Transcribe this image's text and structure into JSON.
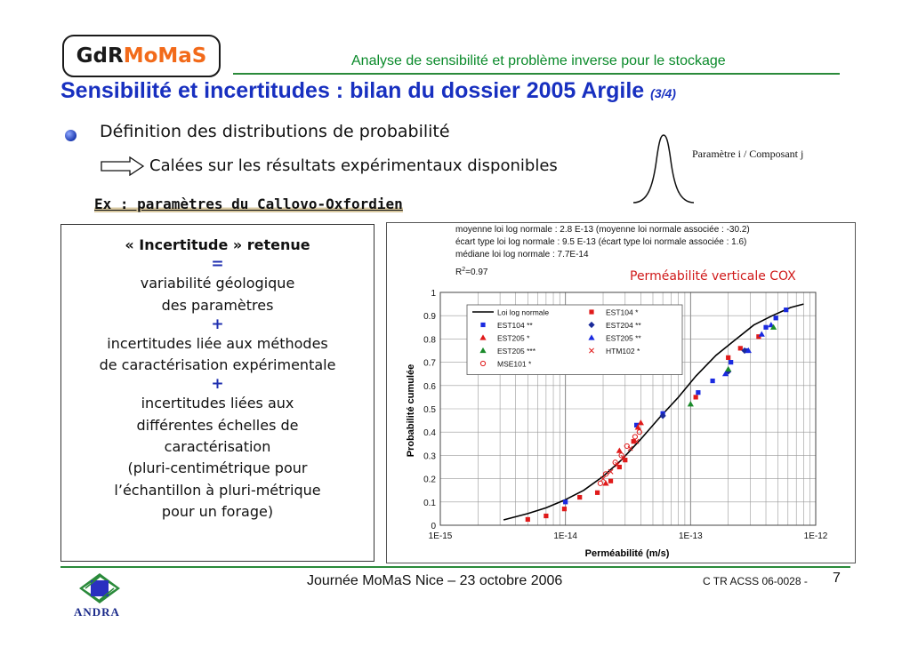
{
  "logo": {
    "part1": "GdR",
    "part2": "MoMaS"
  },
  "header": {
    "title": "Analyse de sensibilité et problème inverse pour le stockage"
  },
  "main_title": {
    "text": "Sensibilité et incertitudes : bilan du dossier 2005 Argile ",
    "suffix": "(3/4)"
  },
  "bullet": {
    "text": "Définition des distributions de probabilité"
  },
  "sub_point": {
    "text": "Calées sur les résultats expérimentaux disponibles"
  },
  "bell_label": "Paramètre i / Composant j",
  "example": "Ex : paramètres du Callovo-Oxfordien",
  "uncertainty_box": {
    "title": "« Incertitude » retenue",
    "eq": "=",
    "line1": "variabilité géologique",
    "line2": "des paramètres",
    "plus1": "+",
    "line3": "incertitudes liée aux méthodes",
    "line4": "de caractérisation expérimentale",
    "plus2": "+",
    "line5": "incertitudes liées aux",
    "line6": "différentes échelles de",
    "line7": "caractérisation",
    "line8": "(pluri-centimétrique pour",
    "line9": "l’échantillon à pluri-métrique",
    "line10": "pour un forage)"
  },
  "chart_title": "Perméabilité verticale COX",
  "chart_data": {
    "type": "scatter",
    "title": "Perméabilité verticale COX",
    "xlabel": "Perméabilité (m/s)",
    "ylabel": "Probabilité cumulée",
    "x_scale": "log",
    "xlim": [
      1e-15,
      1e-12
    ],
    "ylim": [
      0,
      1
    ],
    "x_ticks": [
      "1E-15",
      "1E-14",
      "1E-13",
      "1E-12"
    ],
    "y_ticks": [
      "0",
      "0.1",
      "0.2",
      "0.3",
      "0.4",
      "0.5",
      "0.6",
      "0.7",
      "0.8",
      "0.9",
      "1"
    ],
    "grid": true,
    "legend_position": "top-left",
    "annotations": {
      "line1": "moyenne loi log normale : 2.8 E-13 (moyenne loi normale associée : -30.2)",
      "line2": "écart type loi log normale : 9.5 E-13 (écart type loi normale associée : 1.6)",
      "line3": "médiane loi log normale : 7.7E-14",
      "r2_prefix": "R",
      "r2_sup": "2",
      "r2_value": "=0.97"
    },
    "curve": {
      "name": "Loi log normale",
      "color": "#000000",
      "x": [
        3.2e-15,
        5e-15,
        7e-15,
        1e-14,
        1.4e-14,
        2e-14,
        2.8e-14,
        4e-14,
        5.6e-14,
        8e-14,
        1.1e-13,
        1.6e-13,
        2.2e-13,
        3.2e-13,
        4.5e-13,
        6.3e-13,
        8e-13
      ],
      "y": [
        0.023,
        0.05,
        0.075,
        0.11,
        0.15,
        0.21,
        0.28,
        0.37,
        0.46,
        0.55,
        0.64,
        0.73,
        0.79,
        0.86,
        0.9,
        0.935,
        0.95
      ]
    },
    "series": [
      {
        "name": "EST104 *",
        "color": "#e01a1a",
        "marker": "square",
        "x": [
          5e-15,
          7e-15,
          9.8e-15,
          1.3e-14,
          1.8e-14,
          2.3e-14,
          2.7e-14,
          3e-14,
          3.5e-14,
          1.1e-13,
          2e-13,
          2.5e-13,
          3.5e-13
        ],
        "y": [
          0.025,
          0.04,
          0.07,
          0.12,
          0.14,
          0.19,
          0.25,
          0.28,
          0.36,
          0.55,
          0.72,
          0.76,
          0.81
        ]
      },
      {
        "name": "EST104 **",
        "color": "#1a2ae0",
        "marker": "square",
        "x": [
          1e-14,
          3.7e-14,
          6e-14,
          1.15e-13,
          1.5e-13,
          2.1e-13,
          2.8e-13,
          4e-13,
          4.8e-13,
          5.8e-13
        ],
        "y": [
          0.1,
          0.43,
          0.48,
          0.57,
          0.62,
          0.7,
          0.75,
          0.85,
          0.89,
          0.925
        ]
      },
      {
        "name": "EST204 **",
        "color": "#1a2a9a",
        "marker": "diamond",
        "x": [
          6e-14,
          2e-13,
          2.7e-13
        ],
        "y": [
          0.47,
          0.66,
          0.75
        ]
      },
      {
        "name": "EST205 *",
        "color": "#e01a1a",
        "marker": "triangle",
        "x": [
          3.8e-14,
          4e-14,
          2.1e-14,
          2.7e-14
        ],
        "y": [
          0.42,
          0.44,
          0.18,
          0.32
        ]
      },
      {
        "name": "EST205 **",
        "color": "#1a2ae0",
        "marker": "triangle",
        "x": [
          1.9e-13,
          2.9e-13,
          3.7e-13,
          4.4e-13
        ],
        "y": [
          0.65,
          0.75,
          0.82,
          0.86
        ]
      },
      {
        "name": "EST205 ***",
        "color": "#1a8a2a",
        "marker": "triangle",
        "x": [
          1e-13,
          2e-13,
          4.6e-13
        ],
        "y": [
          0.52,
          0.67,
          0.85
        ]
      },
      {
        "name": "HTM102 *",
        "color": "#e01a1a",
        "marker": "x",
        "x": [
          2e-14,
          2.3e-14,
          2.6e-14,
          2.9e-14,
          3.3e-14,
          3.7e-14
        ],
        "y": [
          0.2,
          0.23,
          0.26,
          0.29,
          0.33,
          0.36
        ]
      },
      {
        "name": "MSE101 *",
        "color": "#e01a1a",
        "marker": "circle",
        "x": [
          1.9e-14,
          2.1e-14,
          2.5e-14,
          2.8e-14,
          3.1e-14,
          3.6e-14,
          3.9e-14
        ],
        "y": [
          0.18,
          0.22,
          0.27,
          0.3,
          0.34,
          0.38,
          0.4
        ]
      }
    ]
  },
  "footer": {
    "center": "Journée MoMaS Nice – 23 octobre 2006",
    "ref": "C TR ACSS 06-0028 -",
    "page": "7",
    "andra": "ANDRA"
  }
}
